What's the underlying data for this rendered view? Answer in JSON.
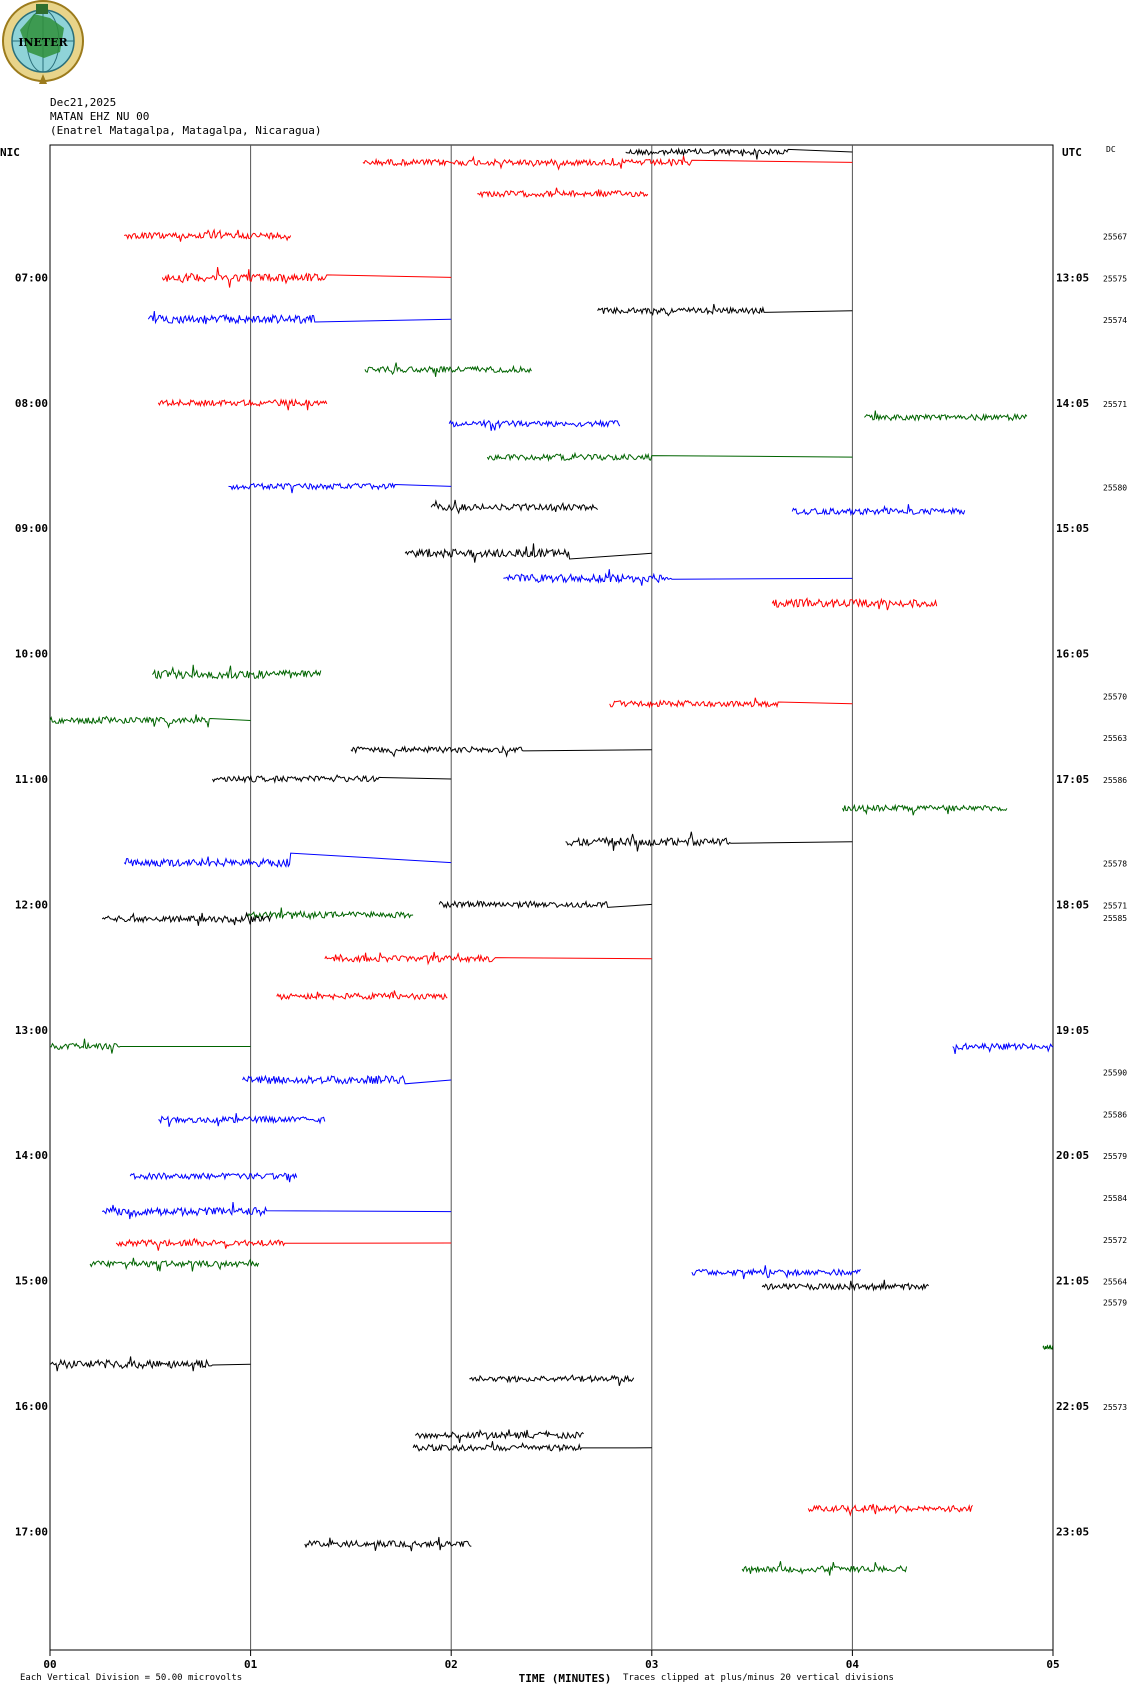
{
  "header": {
    "date": "Dec21,2025",
    "station": "MATAN EHZ NU 00",
    "location": "(Enatrel Matagalpa, Matagalpa, Nicaragua)"
  },
  "logo": {
    "text": "INETER"
  },
  "labels": {
    "left_tz": "NIC",
    "right_tz": "UTC",
    "dc": "DC"
  },
  "colors": {
    "black": "#000000",
    "red": "#ff0000",
    "blue": "#0000ff",
    "green": "#006400"
  },
  "chart_data": {
    "type": "line",
    "title": "MATAN EHZ NU 00",
    "xlabel": "TIME (MINUTES)",
    "xlim": [
      0,
      5
    ],
    "x_ticks": [
      "00",
      "01",
      "02",
      "03",
      "04",
      "05"
    ],
    "row_minutes": 5,
    "y_ticks_left": [
      "07:00",
      "08:00",
      "09:00",
      "10:00",
      "11:00",
      "12:00",
      "13:00",
      "14:00",
      "15:00",
      "16:00",
      "17:00"
    ],
    "y_ticks_right": [
      "13:05",
      "14:05",
      "15:05",
      "16:05",
      "17:05",
      "18:05",
      "19:05",
      "20:05",
      "21:05",
      "22:05",
      "23:05"
    ],
    "footer_left": "Each Vertical Division =    50.00 microvolts",
    "footer_right": "Traces clipped at plus/minus 20 vertical divisions",
    "dc_values": [
      {
        "row": 2,
        "value": "25567"
      },
      {
        "row": 3,
        "value": "25575"
      },
      {
        "row": 4,
        "value": "25574"
      },
      {
        "row": 6,
        "value": "25571"
      },
      {
        "row": 8,
        "value": "25580"
      },
      {
        "row": 13,
        "value": "25570"
      },
      {
        "row": 14,
        "value": "25563"
      },
      {
        "row": 15,
        "value": "25586"
      },
      {
        "row": 17,
        "value": "25578"
      },
      {
        "row": 18,
        "value": "25571"
      },
      {
        "row": 18.3,
        "value": "25585"
      },
      {
        "row": 22,
        "value": "25590"
      },
      {
        "row": 23,
        "value": "25586"
      },
      {
        "row": 24,
        "value": "25579"
      },
      {
        "row": 25,
        "value": "25584"
      },
      {
        "row": 26,
        "value": "25572"
      },
      {
        "row": 27,
        "value": "25564"
      },
      {
        "row": 27.5,
        "value": "25579"
      },
      {
        "row": 30,
        "value": "25573"
      }
    ],
    "series": [
      {
        "row": 0,
        "color": "black",
        "start": 2.87,
        "end": 3.68,
        "amp": 3,
        "tail_end": 4.0
      },
      {
        "row": 0,
        "color": "red",
        "start": 1.56,
        "end": 3.2,
        "amp": 3,
        "tail_end": 4.0,
        "offset": 0.25
      },
      {
        "row": 1,
        "color": "red",
        "start": 2.13,
        "end": 2.98,
        "amp": 3
      },
      {
        "row": 2,
        "color": "red",
        "start": 0.37,
        "end": 1.2,
        "amp": 3
      },
      {
        "row": 3,
        "color": "red",
        "start": 0.56,
        "end": 1.38,
        "amp": 4,
        "tail_end": 2.0
      },
      {
        "row": 4,
        "color": "blue",
        "start": 0.49,
        "end": 1.32,
        "amp": 4,
        "tail_end": 2.0
      },
      {
        "row": 5,
        "color": "black",
        "start": 2.73,
        "end": 3.56,
        "amp": 3,
        "tail_end": 4.0,
        "offset": -1.2
      },
      {
        "row": 5,
        "color": "green",
        "start": 1.57,
        "end": 2.4,
        "amp": 3,
        "offset": 0.2
      },
      {
        "row": 6,
        "color": "red",
        "start": 0.54,
        "end": 1.38,
        "amp": 3
      },
      {
        "row": 6,
        "color": "blue",
        "start": 1.99,
        "end": 2.84,
        "amp": 3,
        "offset": 0.5
      },
      {
        "row": 7,
        "color": "green",
        "start": 4.06,
        "end": 4.87,
        "amp": 3,
        "offset": -0.65
      },
      {
        "row": 7,
        "color": "green",
        "start": 2.18,
        "end": 3.0,
        "amp": 3,
        "tail_end": 4.0,
        "offset": 0.3
      },
      {
        "row": 8,
        "color": "blue",
        "start": 0.89,
        "end": 1.72,
        "amp": 3,
        "tail_end": 2.0
      },
      {
        "row": 8,
        "color": "black",
        "start": 1.9,
        "end": 2.73,
        "amp": 3,
        "offset": 0.5
      },
      {
        "row": 9,
        "color": "blue",
        "start": 3.7,
        "end": 4.56,
        "amp": 3,
        "offset": -0.4
      },
      {
        "row": 9,
        "color": "black",
        "start": 1.77,
        "end": 2.59,
        "amp": 4,
        "tail_end": 3.0,
        "offset": 0.6
      },
      {
        "row": 10,
        "color": "blue",
        "start": 2.26,
        "end": 3.1,
        "amp": 4,
        "tail_end": 4.0,
        "offset": 0.2
      },
      {
        "row": 11,
        "color": "red",
        "start": 3.6,
        "end": 4.42,
        "amp": 4,
        "offset": -0.2
      },
      {
        "row": 12,
        "color": "green",
        "start": 0.51,
        "end": 1.35,
        "amp": 4,
        "offset": 0.5
      },
      {
        "row": 13,
        "color": "red",
        "start": 2.79,
        "end": 3.63,
        "amp": 3,
        "tail_end": 4.0,
        "offset": 0.2
      },
      {
        "row": 13,
        "color": "green",
        "start": 0.0,
        "end": 0.8,
        "amp": 3,
        "tail_end": 1.0,
        "offset": 0.6
      },
      {
        "row": 14,
        "color": "black",
        "start": 1.5,
        "end": 2.36,
        "amp": 3,
        "tail_end": 3.0,
        "offset": 0.3
      },
      {
        "row": 15,
        "color": "black",
        "start": 0.81,
        "end": 1.64,
        "amp": 3,
        "tail_end": 2.0
      },
      {
        "row": 16,
        "color": "green",
        "start": 3.95,
        "end": 4.77,
        "amp": 3,
        "offset": -0.3
      },
      {
        "row": 16,
        "color": "black",
        "start": 2.57,
        "end": 3.4,
        "amp": 4,
        "tail_end": 4.0,
        "offset": 0.5
      },
      {
        "row": 17,
        "color": "blue",
        "start": 0.37,
        "end": 1.2,
        "amp": 4,
        "tail_end": 2.0
      },
      {
        "row": 18,
        "color": "black",
        "start": 1.94,
        "end": 2.78,
        "amp": 3,
        "tail_end": 3.0
      },
      {
        "row": 18,
        "color": "green",
        "start": 0.98,
        "end": 1.81,
        "amp": 3,
        "offset": 0.25
      },
      {
        "row": 19,
        "color": "black",
        "start": 0.26,
        "end": 1.1,
        "amp": 3,
        "offset": -0.65
      },
      {
        "row": 19,
        "color": "red",
        "start": 1.37,
        "end": 2.22,
        "amp": 3,
        "tail_end": 3.0,
        "offset": 0.3
      },
      {
        "row": 20,
        "color": "red",
        "start": 1.13,
        "end": 1.98,
        "amp": 3,
        "offset": 0.2
      },
      {
        "row": 21,
        "color": "blue",
        "start": 4.5,
        "end": 5.0,
        "amp": 3,
        "offset": 0.4
      },
      {
        "row": 22,
        "color": "green",
        "start": 0.0,
        "end": 0.35,
        "amp": 3,
        "tail_end": 1.0,
        "offset": -0.6
      },
      {
        "row": 22,
        "color": "blue",
        "start": 0.96,
        "end": 1.77,
        "amp": 4,
        "tail_end": 2.0,
        "offset": 0.2
      },
      {
        "row": 23,
        "color": "blue",
        "start": 0.54,
        "end": 1.37,
        "amp": 3,
        "offset": 0.15
      },
      {
        "row": 24,
        "color": "blue",
        "start": 0.4,
        "end": 1.23,
        "amp": 3,
        "offset": 0.5
      },
      {
        "row": 25,
        "color": "blue",
        "start": 0.26,
        "end": 1.08,
        "amp": 4,
        "tail_end": 2.0,
        "offset": 0.35
      },
      {
        "row": 26,
        "color": "red",
        "start": 0.33,
        "end": 1.17,
        "amp": 3,
        "tail_end": 2.0,
        "offset": 0.1
      },
      {
        "row": 26,
        "color": "green",
        "start": 0.2,
        "end": 1.04,
        "amp": 3,
        "offset": 0.6
      },
      {
        "row": 27,
        "color": "blue",
        "start": 3.2,
        "end": 4.04,
        "amp": 3,
        "offset": -0.2
      },
      {
        "row": 27,
        "color": "black",
        "start": 3.55,
        "end": 4.38,
        "amp": 3,
        "offset": 0.15
      },
      {
        "row": 28,
        "color": "green",
        "start": 4.95,
        "end": 5.0,
        "amp": 2,
        "offset": 0.6
      },
      {
        "row": 29,
        "color": "black",
        "start": 0.0,
        "end": 0.81,
        "amp": 4,
        "tail_end": 1.0
      },
      {
        "row": 29,
        "color": "black",
        "start": 2.09,
        "end": 2.91,
        "amp": 3,
        "offset": 0.35
      },
      {
        "row": 30,
        "color": "black",
        "start": 1.82,
        "end": 2.66,
        "amp": 3,
        "offset": 0.7
      },
      {
        "row": 31,
        "color": "black",
        "start": 1.81,
        "end": 2.65,
        "amp": 3,
        "tail_end": 3.0
      },
      {
        "row": 32,
        "color": "red",
        "start": 3.78,
        "end": 4.6,
        "amp": 3,
        "offset": 0.45
      },
      {
        "row": 33,
        "color": "black",
        "start": 1.27,
        "end": 2.1,
        "amp": 3,
        "offset": 0.3
      },
      {
        "row": 34,
        "color": "green",
        "start": 3.45,
        "end": 4.27,
        "amp": 3,
        "offset": -0.1
      }
    ]
  }
}
